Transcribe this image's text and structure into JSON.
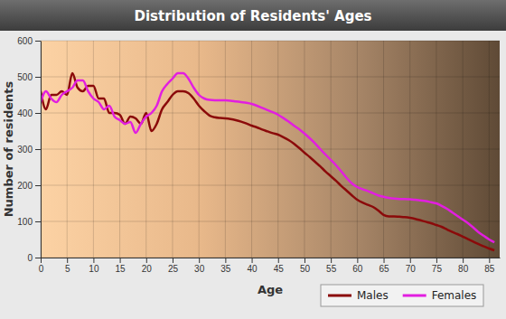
{
  "chart_data": {
    "type": "line",
    "title": "Distribution of Residents' Ages",
    "x_label": "Age",
    "y_label": "Number of residents",
    "x": [
      0,
      1,
      2,
      3,
      4,
      5,
      6,
      7,
      8,
      9,
      10,
      11,
      12,
      13,
      14,
      15,
      16,
      17,
      18,
      19,
      20,
      21,
      22,
      23,
      24,
      25,
      26,
      27,
      28,
      29,
      30,
      31,
      32,
      33,
      34,
      35,
      36,
      37,
      38,
      39,
      40,
      41,
      42,
      43,
      44,
      45,
      46,
      47,
      48,
      49,
      50,
      51,
      52,
      53,
      54,
      55,
      56,
      57,
      58,
      59,
      60,
      61,
      62,
      63,
      64,
      65,
      66,
      67,
      68,
      69,
      70,
      71,
      72,
      73,
      74,
      75,
      76,
      77,
      78,
      79,
      80,
      81,
      82,
      83,
      84,
      85,
      86
    ],
    "series": [
      {
        "name": "Males",
        "color": "#8b0a0a",
        "values": [
          460,
          410,
          450,
          450,
          460,
          450,
          510,
          470,
          460,
          475,
          475,
          440,
          440,
          400,
          400,
          395,
          370,
          390,
          385,
          370,
          400,
          350,
          370,
          410,
          430,
          450,
          460,
          460,
          455,
          440,
          420,
          405,
          393,
          388,
          386,
          385,
          383,
          380,
          376,
          371,
          365,
          360,
          354,
          349,
          344,
          340,
          333,
          325,
          315,
          303,
          290,
          278,
          265,
          252,
          238,
          225,
          212,
          198,
          185,
          172,
          160,
          152,
          146,
          140,
          130,
          118,
          114,
          114,
          113,
          112,
          110,
          107,
          103,
          99,
          95,
          90,
          85,
          78,
          71,
          65,
          58,
          51,
          44,
          37,
          31,
          25,
          20
        ]
      },
      {
        "name": "Females",
        "color": "#e21ee0",
        "values": [
          430,
          460,
          440,
          430,
          450,
          460,
          470,
          490,
          490,
          460,
          440,
          430,
          410,
          420,
          390,
          380,
          370,
          375,
          345,
          370,
          390,
          400,
          420,
          460,
          480,
          495,
          510,
          510,
          495,
          470,
          450,
          440,
          436,
          435,
          435,
          435,
          434,
          432,
          430,
          428,
          425,
          420,
          414,
          408,
          402,
          395,
          386,
          376,
          365,
          355,
          343,
          330,
          316,
          300,
          285,
          270,
          255,
          238,
          220,
          205,
          195,
          189,
          184,
          178,
          172,
          168,
          165,
          163,
          162,
          162,
          161,
          160,
          158,
          156,
          153,
          150,
          143,
          135,
          125,
          115,
          105,
          95,
          83,
          70,
          60,
          50,
          42
        ]
      }
    ],
    "xlim": [
      0,
      87
    ],
    "xticks": [
      0,
      5,
      10,
      15,
      20,
      25,
      30,
      35,
      40,
      45,
      50,
      55,
      60,
      65,
      70,
      75,
      80,
      85
    ],
    "ylim": [
      0,
      600
    ],
    "yticks": [
      0,
      100,
      200,
      300,
      400,
      500,
      600
    ],
    "grid": true,
    "legend": "bottom-right"
  }
}
